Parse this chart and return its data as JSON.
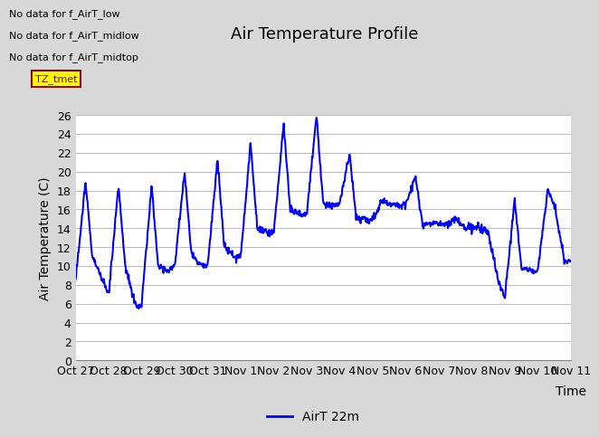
{
  "title": "Air Temperature Profile",
  "xlabel": "Time",
  "ylabel": "Air Temperature (C)",
  "ylim": [
    0,
    26
  ],
  "yticks": [
    0,
    2,
    4,
    6,
    8,
    10,
    12,
    14,
    16,
    18,
    20,
    22,
    24,
    26
  ],
  "line_color": "blue",
  "line_width": 1.5,
  "background_color": "#d8d8d8",
  "plot_bg_color": "#ffffff",
  "legend_label": "AirT 22m",
  "annotations": [
    "No data for f_AirT_low",
    "No data for f_AirT_midlow",
    "No data for f_AirT_midtop"
  ],
  "tz_label": "TZ_tmet",
  "x_tick_labels": [
    "Oct 27",
    "Oct 28",
    "Oct 29",
    "Oct 30",
    "Oct 31",
    "Nov 1",
    "Nov 2",
    "Nov 3",
    "Nov 4",
    "Nov 5",
    "Nov 6",
    "Nov 7",
    "Nov 8",
    "Nov 9",
    "Nov 10",
    "Nov 11"
  ],
  "title_fontsize": 13,
  "axis_fontsize": 10,
  "tick_fontsize": 9,
  "annot_fontsize": 8
}
